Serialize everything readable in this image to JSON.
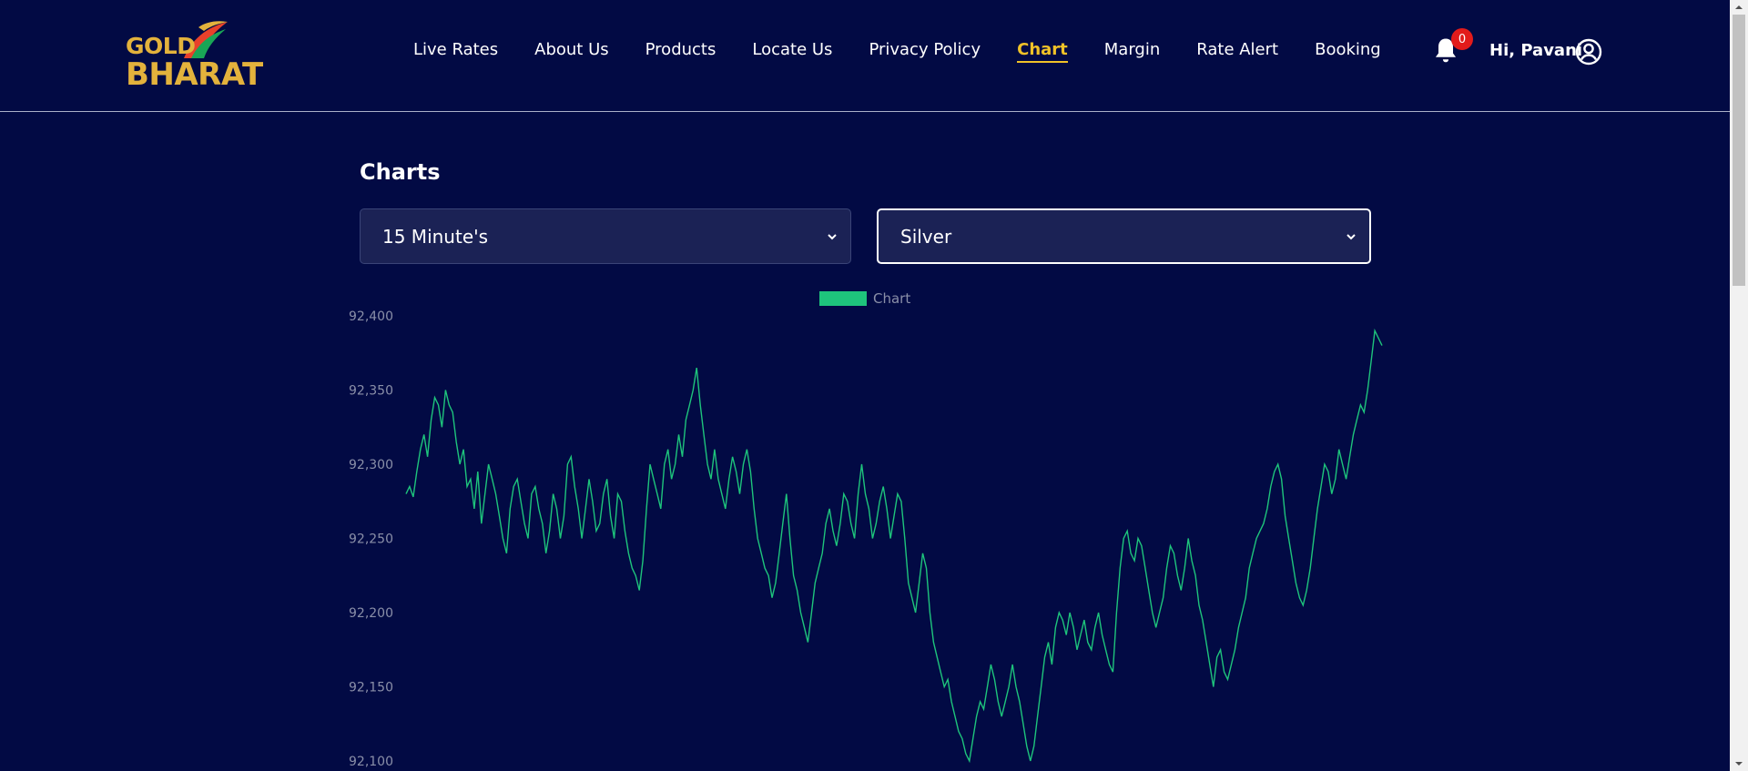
{
  "header": {
    "logo": {
      "line1": "GOLD",
      "line2": "BHARAT"
    },
    "nav": [
      {
        "label": "Live Rates",
        "active": false
      },
      {
        "label": "About Us",
        "active": false
      },
      {
        "label": "Products",
        "active": false
      },
      {
        "label": "Locate Us",
        "active": false
      },
      {
        "label": "Privacy Policy",
        "active": false
      },
      {
        "label": "Chart",
        "active": true
      },
      {
        "label": "Margin",
        "active": false
      },
      {
        "label": "Rate Alert",
        "active": false
      },
      {
        "label": "Booking",
        "active": false
      }
    ],
    "notification_count": "0",
    "greeting": "Hi, Pavani",
    "icons": {
      "notifications": "bell-icon",
      "account": "user-circle-icon"
    }
  },
  "main": {
    "title": "Charts",
    "interval_select": {
      "value": "15 Minute's"
    },
    "metal_select": {
      "value": "Silver"
    }
  },
  "colors": {
    "background": "#020a44",
    "accent": "#f0c228",
    "line": "#1ec47c",
    "badge": "#e21b1b"
  },
  "chart_data": {
    "type": "line",
    "legend": "Chart",
    "legend_placement": "top-center",
    "grid": false,
    "y_ticks": [
      "92,400",
      "92,350",
      "92,300",
      "92,250",
      "92,200",
      "92,150",
      "92,100"
    ],
    "ylim": [
      92100,
      92400
    ],
    "series": [
      {
        "name": "Chart",
        "values": [
          92280,
          92285,
          92278,
          92295,
          92310,
          92320,
          92305,
          92330,
          92345,
          92340,
          92325,
          92350,
          92340,
          92335,
          92315,
          92300,
          92310,
          92285,
          92290,
          92270,
          92295,
          92260,
          92280,
          92300,
          92290,
          92280,
          92265,
          92250,
          92240,
          92270,
          92285,
          92290,
          92275,
          92260,
          92250,
          92280,
          92285,
          92270,
          92260,
          92240,
          92255,
          92280,
          92270,
          92250,
          92265,
          92300,
          92305,
          92285,
          92270,
          92250,
          92270,
          92290,
          92275,
          92255,
          92260,
          92280,
          92290,
          92265,
          92250,
          92280,
          92275,
          92255,
          92240,
          92230,
          92225,
          92215,
          92235,
          92270,
          92300,
          92290,
          92280,
          92270,
          92300,
          92310,
          92290,
          92300,
          92320,
          92305,
          92330,
          92340,
          92350,
          92365,
          92340,
          92320,
          92300,
          92290,
          92310,
          92290,
          92280,
          92270,
          92290,
          92305,
          92295,
          92280,
          92300,
          92310,
          92295,
          92270,
          92250,
          92240,
          92230,
          92225,
          92210,
          92220,
          92240,
          92260,
          92280,
          92250,
          92225,
          92215,
          92200,
          92190,
          92180,
          92200,
          92220,
          92230,
          92240,
          92260,
          92270,
          92255,
          92245,
          92260,
          92280,
          92275,
          92260,
          92250,
          92280,
          92300,
          92280,
          92270,
          92250,
          92260,
          92275,
          92285,
          92270,
          92250,
          92265,
          92280,
          92275,
          92250,
          92220,
          92210,
          92200,
          92220,
          92240,
          92230,
          92200,
          92180,
          92170,
          92160,
          92150,
          92155,
          92140,
          92130,
          92120,
          92115,
          92105,
          92100,
          92115,
          92130,
          92140,
          92135,
          92150,
          92165,
          92155,
          92140,
          92130,
          92140,
          92150,
          92165,
          92150,
          92140,
          92125,
          92110,
          92100,
          92110,
          92130,
          92150,
          92170,
          92180,
          92165,
          92190,
          92200,
          92195,
          92185,
          92200,
          92190,
          92175,
          92185,
          92195,
          92180,
          92175,
          92190,
          92200,
          92185,
          92175,
          92165,
          92160,
          92200,
          92230,
          92250,
          92255,
          92240,
          92235,
          92250,
          92245,
          92230,
          92215,
          92200,
          92190,
          92200,
          92210,
          92230,
          92245,
          92240,
          92225,
          92215,
          92230,
          92250,
          92235,
          92225,
          92205,
          92195,
          92180,
          92165,
          92150,
          92170,
          92175,
          92160,
          92155,
          92165,
          92175,
          92190,
          92200,
          92210,
          92230,
          92240,
          92250,
          92255,
          92260,
          92270,
          92285,
          92295,
          92300,
          92290,
          92265,
          92250,
          92235,
          92220,
          92210,
          92205,
          92215,
          92230,
          92250,
          92270,
          92285,
          92300,
          92295,
          92280,
          92290,
          92310,
          92300,
          92290,
          92305,
          92320,
          92330,
          92340,
          92335,
          92350,
          92370,
          92390,
          92385,
          92380
        ]
      }
    ]
  }
}
